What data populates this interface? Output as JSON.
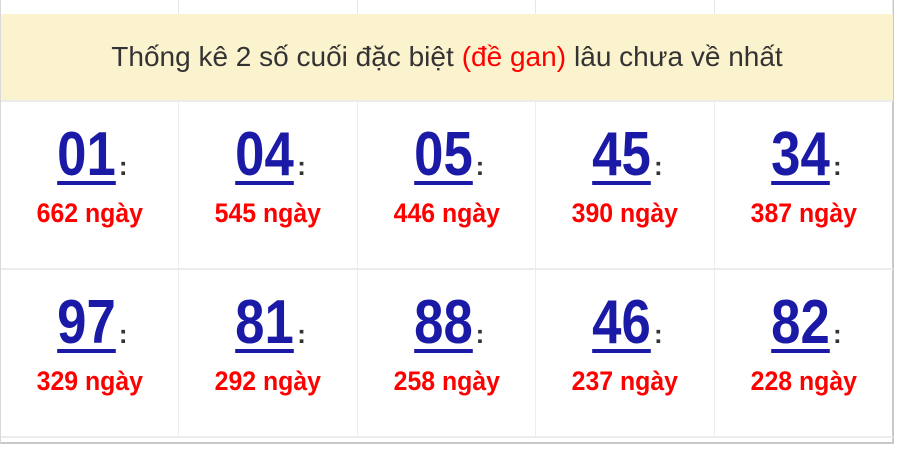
{
  "header": {
    "title_before": "Thống kê 2 số cuối đặc biệt",
    "title_highlight": "(đề gan)",
    "title_after": "lâu chưa về nhất"
  },
  "colors": {
    "number": "#1a1aa6",
    "days": "#ff0000",
    "header_bg": "#fbf2ce"
  },
  "items": [
    {
      "number": "01",
      "colon": ":",
      "days": "662 ngày"
    },
    {
      "number": "04",
      "colon": ":",
      "days": "545 ngày"
    },
    {
      "number": "05",
      "colon": ":",
      "days": "446 ngày"
    },
    {
      "number": "45",
      "colon": ":",
      "days": "390 ngày"
    },
    {
      "number": "34",
      "colon": ":",
      "days": "387 ngày"
    },
    {
      "number": "97",
      "colon": ":",
      "days": "329 ngày"
    },
    {
      "number": "81",
      "colon": ":",
      "days": "292 ngày"
    },
    {
      "number": "88",
      "colon": ":",
      "days": "258 ngày"
    },
    {
      "number": "46",
      "colon": ":",
      "days": "237 ngày"
    },
    {
      "number": "82",
      "colon": ":",
      "days": "228 ngày"
    }
  ]
}
